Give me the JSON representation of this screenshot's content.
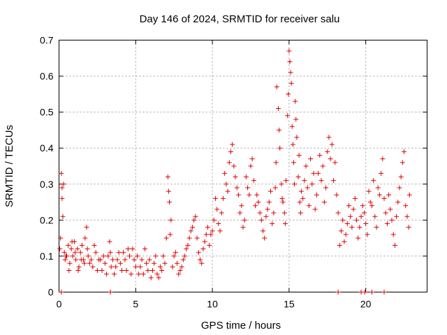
{
  "chart_data": {
    "type": "scatter",
    "title": "Day 146 of 2024, SRMTID for receiver salu",
    "xlabel": "GPS time / hours",
    "ylabel": "SRMTID / TECUs",
    "xlim": [
      0,
      24
    ],
    "ylim": [
      0,
      0.7
    ],
    "xticks": [
      0,
      5,
      10,
      15,
      20
    ],
    "yticks": [
      0,
      0.1,
      0.2,
      0.3,
      0.4,
      0.5,
      0.6,
      0.7
    ],
    "xtick_labels": [
      "0",
      "5",
      "10",
      "15",
      "20"
    ],
    "ytick_labels": [
      "0",
      "0.1",
      "0.2",
      "0.3",
      "0.4",
      "0.5",
      "0.6",
      "0.7"
    ],
    "grid": true,
    "marker": "plus",
    "color": "#e00000",
    "series": [
      {
        "name": "SRMTID",
        "points": [
          [
            0.05,
            0.12
          ],
          [
            0.1,
            0.15
          ],
          [
            0.15,
            0.33
          ],
          [
            0.2,
            0.26
          ],
          [
            0.25,
            0.21
          ],
          [
            0.3,
            0.3
          ],
          [
            0.35,
            0.11
          ],
          [
            0.4,
            0.09
          ],
          [
            0.5,
            0.1
          ],
          [
            0.6,
            0.13
          ],
          [
            0.7,
            0.08
          ],
          [
            0.8,
            0.12
          ],
          [
            0.9,
            0.1
          ],
          [
            1.0,
            0.14
          ],
          [
            1.1,
            0.09
          ],
          [
            1.2,
            0.12
          ],
          [
            1.3,
            0.07
          ],
          [
            1.4,
            0.11
          ],
          [
            1.5,
            0.13
          ],
          [
            1.6,
            0.09
          ],
          [
            1.7,
            0.15
          ],
          [
            1.8,
            0.18
          ],
          [
            1.9,
            0.1
          ],
          [
            2.0,
            0.08
          ],
          [
            2.2,
            0.07
          ],
          [
            2.4,
            0.11
          ],
          [
            2.6,
            0.09
          ],
          [
            2.8,
            0.06
          ],
          [
            3.0,
            0.08
          ],
          [
            3.2,
            0.1
          ],
          [
            3.3,
            0.14
          ],
          [
            3.4,
            0.07
          ],
          [
            3.6,
            0.05
          ],
          [
            3.8,
            0.09
          ],
          [
            4.0,
            0.08
          ],
          [
            4.2,
            0.11
          ],
          [
            4.4,
            0.06
          ],
          [
            4.6,
            0.1
          ],
          [
            4.8,
            0.12
          ],
          [
            5.0,
            0.07
          ],
          [
            5.2,
            0.05
          ],
          [
            5.4,
            0.09
          ],
          [
            5.6,
            0.12
          ],
          [
            5.8,
            0.06
          ],
          [
            6.0,
            0.04
          ],
          [
            6.2,
            0.08
          ],
          [
            6.4,
            0.05
          ],
          [
            6.6,
            0.07
          ],
          [
            6.8,
            0.1
          ],
          [
            7.0,
            0.15
          ],
          [
            7.1,
            0.32
          ],
          [
            7.2,
            0.25
          ],
          [
            7.3,
            0.2
          ],
          [
            7.5,
            0.1
          ],
          [
            7.7,
            0.08
          ],
          [
            7.9,
            0.06
          ],
          [
            8.1,
            0.09
          ],
          [
            8.3,
            0.12
          ],
          [
            8.5,
            0.15
          ],
          [
            8.7,
            0.18
          ],
          [
            8.9,
            0.21
          ],
          [
            9.1,
            0.11
          ],
          [
            9.3,
            0.08
          ],
          [
            9.5,
            0.14
          ],
          [
            9.7,
            0.18
          ],
          [
            9.9,
            0.16
          ],
          [
            10.1,
            0.2
          ],
          [
            10.3,
            0.23
          ],
          [
            10.5,
            0.17
          ],
          [
            10.7,
            0.26
          ],
          [
            10.9,
            0.3
          ],
          [
            11.1,
            0.36
          ],
          [
            11.3,
            0.41
          ],
          [
            11.5,
            0.32
          ],
          [
            11.7,
            0.27
          ],
          [
            11.9,
            0.24
          ],
          [
            12.1,
            0.2
          ],
          [
            12.3,
            0.29
          ],
          [
            12.5,
            0.35
          ],
          [
            12.7,
            0.31
          ],
          [
            12.9,
            0.27
          ],
          [
            13.1,
            0.22
          ],
          [
            13.3,
            0.17
          ],
          [
            13.5,
            0.21
          ],
          [
            13.7,
            0.25
          ],
          [
            13.9,
            0.19
          ],
          [
            14.1,
            0.29
          ],
          [
            14.2,
            0.57
          ],
          [
            14.3,
            0.51
          ],
          [
            14.4,
            0.4
          ],
          [
            14.5,
            0.3
          ],
          [
            14.6,
            0.25
          ],
          [
            14.7,
            0.22
          ],
          [
            14.8,
            0.31
          ],
          [
            14.9,
            0.49
          ],
          [
            15.0,
            0.67
          ],
          [
            15.1,
            0.61
          ],
          [
            15.2,
            0.46
          ],
          [
            15.3,
            0.36
          ],
          [
            15.4,
            0.53
          ],
          [
            15.5,
            0.43
          ],
          [
            15.6,
            0.32
          ],
          [
            15.7,
            0.25
          ],
          [
            15.8,
            0.28
          ],
          [
            16.0,
            0.31
          ],
          [
            16.2,
            0.29
          ],
          [
            16.4,
            0.37
          ],
          [
            16.6,
            0.33
          ],
          [
            16.8,
            0.27
          ],
          [
            17.0,
            0.38
          ],
          [
            17.2,
            0.35
          ],
          [
            17.4,
            0.29
          ],
          [
            17.6,
            0.43
          ],
          [
            17.8,
            0.41
          ],
          [
            18.0,
            0.36
          ],
          [
            18.2,
            0.22
          ],
          [
            18.4,
            0.17
          ],
          [
            18.6,
            0.14
          ],
          [
            18.8,
            0.19
          ],
          [
            19.0,
            0.21
          ],
          [
            19.2,
            0.23
          ],
          [
            19.4,
            0.2
          ],
          [
            19.6,
            0.18
          ],
          [
            19.8,
            0.24
          ],
          [
            20.0,
            0.19
          ],
          [
            20.2,
            0.28
          ],
          [
            20.4,
            0.24
          ],
          [
            20.6,
            0.21
          ],
          [
            20.8,
            0.29
          ],
          [
            21.0,
            0.33
          ],
          [
            21.2,
            0.26
          ],
          [
            21.4,
            0.19
          ],
          [
            21.6,
            0.23
          ],
          [
            21.8,
            0.16
          ],
          [
            22.0,
            0.21
          ],
          [
            22.2,
            0.29
          ],
          [
            22.4,
            0.36
          ],
          [
            22.6,
            0.24
          ],
          [
            22.8,
            0.18
          ],
          [
            0.2,
            0.29
          ],
          [
            0.45,
            0.1
          ],
          [
            0.65,
            0.06
          ],
          [
            0.85,
            0.14
          ],
          [
            1.05,
            0.11
          ],
          [
            1.25,
            0.06
          ],
          [
            1.45,
            0.09
          ],
          [
            1.65,
            0.08
          ],
          [
            1.85,
            0.12
          ],
          [
            2.1,
            0.09
          ],
          [
            2.3,
            0.13
          ],
          [
            2.5,
            0.06
          ],
          [
            2.7,
            0.09
          ],
          [
            2.9,
            0.1
          ],
          [
            3.1,
            0.05
          ],
          [
            3.35,
            0.11
          ],
          [
            3.5,
            0.09
          ],
          [
            3.7,
            0.07
          ],
          [
            3.9,
            0.11
          ],
          [
            4.1,
            0.06
          ],
          [
            4.3,
            0.09
          ],
          [
            4.5,
            0.12
          ],
          [
            4.7,
            0.05
          ],
          [
            4.9,
            0.09
          ],
          [
            5.1,
            0.1
          ],
          [
            5.3,
            0.07
          ],
          [
            5.5,
            0.05
          ],
          [
            5.7,
            0.08
          ],
          [
            5.9,
            0.09
          ],
          [
            6.1,
            0.06
          ],
          [
            6.3,
            0.1
          ],
          [
            6.5,
            0.04
          ],
          [
            6.7,
            0.06
          ],
          [
            6.9,
            0.08
          ],
          [
            7.15,
            0.28
          ],
          [
            7.25,
            0.16
          ],
          [
            7.4,
            0.07
          ],
          [
            7.6,
            0.11
          ],
          [
            7.8,
            0.05
          ],
          [
            8.0,
            0.07
          ],
          [
            8.2,
            0.1
          ],
          [
            8.4,
            0.13
          ],
          [
            8.6,
            0.17
          ],
          [
            8.8,
            0.2
          ],
          [
            9.0,
            0.15
          ],
          [
            9.2,
            0.09
          ],
          [
            9.4,
            0.12
          ],
          [
            9.6,
            0.16
          ],
          [
            9.8,
            0.13
          ],
          [
            10.0,
            0.17
          ],
          [
            10.2,
            0.26
          ],
          [
            10.4,
            0.19
          ],
          [
            10.6,
            0.22
          ],
          [
            10.8,
            0.33
          ],
          [
            11.0,
            0.28
          ],
          [
            11.2,
            0.39
          ],
          [
            11.4,
            0.35
          ],
          [
            11.6,
            0.29
          ],
          [
            11.8,
            0.22
          ],
          [
            12.0,
            0.18
          ],
          [
            12.2,
            0.32
          ],
          [
            12.4,
            0.27
          ],
          [
            12.6,
            0.37
          ],
          [
            12.8,
            0.24
          ],
          [
            13.0,
            0.25
          ],
          [
            13.2,
            0.2
          ],
          [
            13.4,
            0.15
          ],
          [
            13.6,
            0.23
          ],
          [
            13.8,
            0.28
          ],
          [
            14.0,
            0.22
          ],
          [
            14.15,
            0.36
          ],
          [
            14.35,
            0.45
          ],
          [
            14.55,
            0.26
          ],
          [
            14.75,
            0.19
          ],
          [
            14.95,
            0.55
          ],
          [
            15.05,
            0.64
          ],
          [
            15.15,
            0.58
          ],
          [
            15.25,
            0.41
          ],
          [
            15.35,
            0.3
          ],
          [
            15.45,
            0.48
          ],
          [
            15.65,
            0.38
          ],
          [
            15.75,
            0.22
          ],
          [
            15.9,
            0.26
          ],
          [
            16.1,
            0.35
          ],
          [
            16.3,
            0.24
          ],
          [
            16.5,
            0.3
          ],
          [
            16.7,
            0.23
          ],
          [
            16.9,
            0.33
          ],
          [
            17.1,
            0.31
          ],
          [
            17.3,
            0.25
          ],
          [
            17.5,
            0.39
          ],
          [
            17.7,
            0.37
          ],
          [
            17.9,
            0.31
          ],
          [
            18.1,
            0.27
          ],
          [
            18.3,
            0.13
          ],
          [
            18.5,
            0.2
          ],
          [
            18.7,
            0.16
          ],
          [
            18.9,
            0.24
          ],
          [
            19.1,
            0.18
          ],
          [
            19.3,
            0.26
          ],
          [
            19.5,
            0.15
          ],
          [
            19.7,
            0.21
          ],
          [
            19.9,
            0.22
          ],
          [
            20.1,
            0.16
          ],
          [
            20.3,
            0.25
          ],
          [
            20.5,
            0.31
          ],
          [
            20.7,
            0.18
          ],
          [
            20.9,
            0.27
          ],
          [
            21.1,
            0.37
          ],
          [
            21.3,
            0.22
          ],
          [
            21.5,
            0.27
          ],
          [
            21.7,
            0.2
          ],
          [
            21.9,
            0.13
          ],
          [
            22.1,
            0.25
          ],
          [
            22.3,
            0.32
          ],
          [
            22.5,
            0.39
          ],
          [
            22.7,
            0.21
          ],
          [
            22.85,
            0.27
          ],
          [
            0.15,
            0.0
          ],
          [
            3.35,
            0.0
          ],
          [
            18.2,
            0.0
          ],
          [
            19.7,
            0.0
          ],
          [
            19.95,
            0.0
          ],
          [
            20.4,
            0.0
          ],
          [
            21.2,
            0.0
          ]
        ]
      }
    ]
  }
}
